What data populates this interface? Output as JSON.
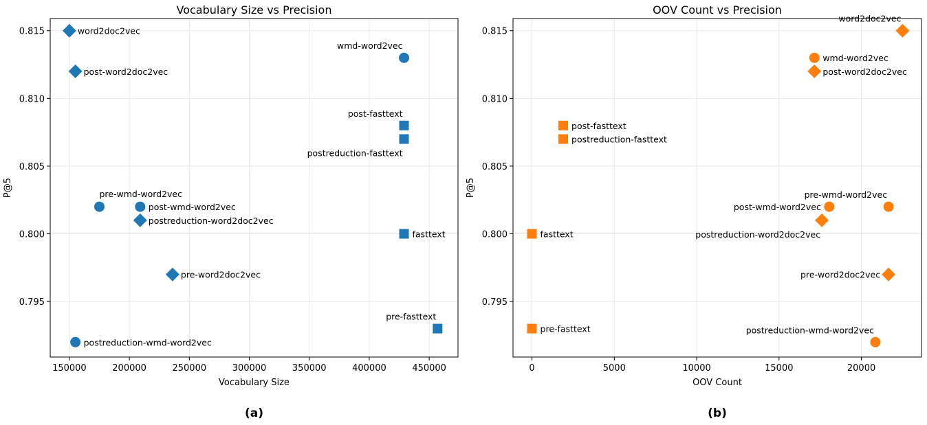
{
  "chart_data": [
    {
      "type": "scatter",
      "title": "Vocabulary Size vs Precision",
      "xlabel": "Vocabulary Size",
      "ylabel": "P@5",
      "caption": "(a)",
      "xlim": [
        134000,
        474000
      ],
      "ylim": [
        0.7909,
        0.8159
      ],
      "xticks": [
        150000,
        200000,
        250000,
        300000,
        350000,
        400000,
        450000
      ],
      "xtick_labels": [
        "150000",
        "200000",
        "250000",
        "300000",
        "350000",
        "400000",
        "450000"
      ],
      "yticks": [
        0.795,
        0.8,
        0.805,
        0.81,
        0.815
      ],
      "ytick_labels": [
        "0.795",
        "0.800",
        "0.805",
        "0.810",
        "0.815"
      ],
      "grid": true,
      "marker_color": "#1f77b4",
      "points": [
        {
          "label": "word2doc2vec",
          "x": 150000,
          "y": 0.815,
          "marker": "diamond",
          "label_pos": "right"
        },
        {
          "label": "post-word2doc2vec",
          "x": 155000,
          "y": 0.812,
          "marker": "diamond",
          "label_pos": "right"
        },
        {
          "label": "wmd-word2vec",
          "x": 429000,
          "y": 0.813,
          "marker": "circle",
          "label_pos": "above-left"
        },
        {
          "label": "post-fasttext",
          "x": 429000,
          "y": 0.808,
          "marker": "square",
          "label_pos": "above-left"
        },
        {
          "label": "postreduction-fasttext",
          "x": 429000,
          "y": 0.807,
          "marker": "square",
          "label_pos": "below-left"
        },
        {
          "label": "pre-wmd-word2vec",
          "x": 175000,
          "y": 0.802,
          "marker": "circle",
          "label_pos": "above-right"
        },
        {
          "label": "post-wmd-word2vec",
          "x": 209000,
          "y": 0.802,
          "marker": "circle",
          "label_pos": "right"
        },
        {
          "label": "postreduction-word2doc2vec",
          "x": 209000,
          "y": 0.801,
          "marker": "diamond",
          "label_pos": "right"
        },
        {
          "label": "fasttext",
          "x": 429000,
          "y": 0.8,
          "marker": "square",
          "label_pos": "right"
        },
        {
          "label": "pre-word2doc2vec",
          "x": 236000,
          "y": 0.797,
          "marker": "diamond",
          "label_pos": "right"
        },
        {
          "label": "pre-fasttext",
          "x": 457000,
          "y": 0.793,
          "marker": "square",
          "label_pos": "above-left"
        },
        {
          "label": "postreduction-wmd-word2vec",
          "x": 155000,
          "y": 0.792,
          "marker": "circle",
          "label_pos": "right"
        }
      ]
    },
    {
      "type": "scatter",
      "title": "OOV Count vs Precision",
      "xlabel": "OOV Count",
      "ylabel": "P@5",
      "caption": "(b)",
      "xlim": [
        -1150,
        23650
      ],
      "ylim": [
        0.7909,
        0.8159
      ],
      "xticks": [
        0,
        5000,
        10000,
        15000,
        20000
      ],
      "xtick_labels": [
        "0",
        "5000",
        "10000",
        "15000",
        "20000"
      ],
      "yticks": [
        0.795,
        0.8,
        0.805,
        0.81,
        0.815
      ],
      "ytick_labels": [
        "0.795",
        "0.800",
        "0.805",
        "0.810",
        "0.815"
      ],
      "grid": true,
      "marker_color": "#ff7f0e",
      "points": [
        {
          "label": "word2doc2vec",
          "x": 22500,
          "y": 0.815,
          "marker": "diamond",
          "label_pos": "above-left"
        },
        {
          "label": "wmd-word2vec",
          "x": 17150,
          "y": 0.813,
          "marker": "circle",
          "label_pos": "right"
        },
        {
          "label": "post-word2doc2vec",
          "x": 17150,
          "y": 0.812,
          "marker": "diamond",
          "label_pos": "right"
        },
        {
          "label": "post-fasttext",
          "x": 1900,
          "y": 0.808,
          "marker": "square",
          "label_pos": "right"
        },
        {
          "label": "postreduction-fasttext",
          "x": 1900,
          "y": 0.807,
          "marker": "square",
          "label_pos": "right"
        },
        {
          "label": "pre-wmd-word2vec",
          "x": 21650,
          "y": 0.802,
          "marker": "circle",
          "label_pos": "above-left"
        },
        {
          "label": "post-wmd-word2vec",
          "x": 18050,
          "y": 0.802,
          "marker": "circle",
          "label_pos": "left"
        },
        {
          "label": "postreduction-word2doc2vec",
          "x": 17600,
          "y": 0.801,
          "marker": "diamond",
          "label_pos": "below-left"
        },
        {
          "label": "fasttext",
          "x": 0,
          "y": 0.8,
          "marker": "square",
          "label_pos": "right"
        },
        {
          "label": "pre-word2doc2vec",
          "x": 21650,
          "y": 0.797,
          "marker": "diamond",
          "label_pos": "left"
        },
        {
          "label": "pre-fasttext",
          "x": 0,
          "y": 0.793,
          "marker": "square",
          "label_pos": "right"
        },
        {
          "label": "postreduction-wmd-word2vec",
          "x": 20850,
          "y": 0.792,
          "marker": "circle",
          "label_pos": "above-left"
        }
      ]
    }
  ]
}
